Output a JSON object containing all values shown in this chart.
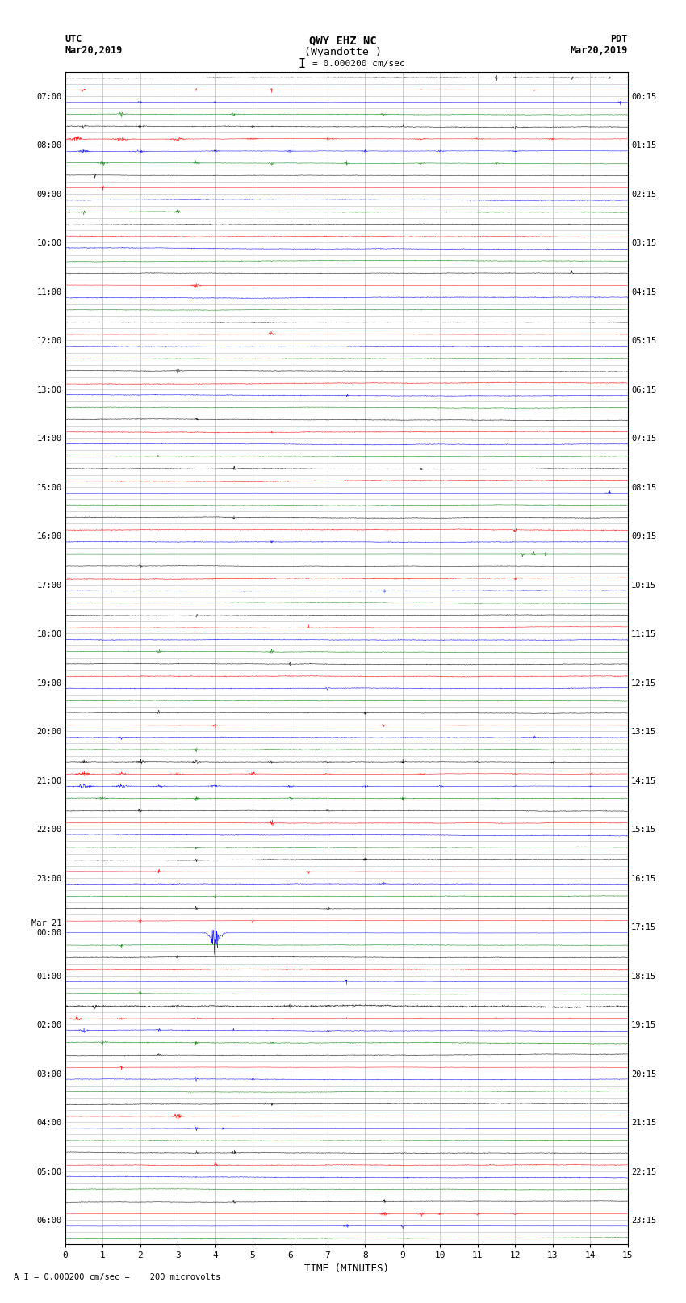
{
  "title_line1": "QWY EHZ NC",
  "title_line2": "(Wyandotte )",
  "scale_label": "= 0.000200 cm/sec",
  "footer_label": "A I = 0.000200 cm/sec =    200 microvolts",
  "xlabel": "TIME (MINUTES)",
  "xlim": [
    0,
    15
  ],
  "bg_color": "#ffffff",
  "grid_color": "#999999",
  "fig_width": 8.5,
  "fig_height": 16.13,
  "utc_labels": [
    "07:00",
    "08:00",
    "09:00",
    "10:00",
    "11:00",
    "12:00",
    "13:00",
    "14:00",
    "15:00",
    "16:00",
    "17:00",
    "18:00",
    "19:00",
    "20:00",
    "21:00",
    "22:00",
    "23:00",
    "Mar 21\n00:00",
    "01:00",
    "02:00",
    "03:00",
    "04:00",
    "05:00",
    "06:00"
  ],
  "pdt_labels": [
    "00:15",
    "01:15",
    "02:15",
    "03:15",
    "04:15",
    "05:15",
    "06:15",
    "07:15",
    "08:15",
    "09:15",
    "10:15",
    "11:15",
    "12:15",
    "13:15",
    "14:15",
    "15:15",
    "16:15",
    "17:15",
    "18:15",
    "19:15",
    "20:15",
    "21:15",
    "22:15",
    "23:15"
  ],
  "n_hours": 24,
  "sub_rows": 4,
  "colors": [
    "black",
    "red",
    "blue",
    "green"
  ]
}
